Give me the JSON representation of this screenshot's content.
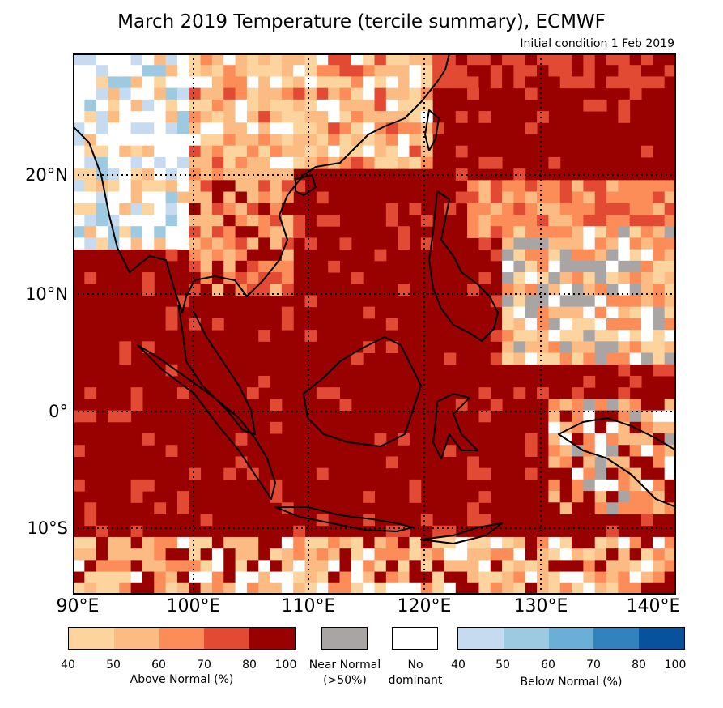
{
  "title": "March 2019 Temperature (tercile summary), ECMWF",
  "subtitle": "Initial condition 1 Feb 2019",
  "map": {
    "lat_labels": [
      "20°N",
      "10°N",
      "0°",
      "10°S"
    ],
    "lon_labels": [
      "90°E",
      "100°E",
      "110°E",
      "120°E",
      "130°E",
      "140°E"
    ],
    "region": "Southeast Asia / Maritime Continent"
  },
  "legend": {
    "above": {
      "caption": "Above Normal (%)",
      "ticks": [
        "40",
        "50",
        "60",
        "70",
        "80",
        "100"
      ],
      "colors": [
        "#fdd49e",
        "#fdbb84",
        "#fc8d59",
        "#e34a33",
        "#990000"
      ]
    },
    "near": {
      "caption_line1": "Near Normal",
      "caption_line2": "(>50%)",
      "color": "#aaa5a5"
    },
    "none": {
      "caption_line1": "No",
      "caption_line2": "dominant",
      "color": "#ffffff"
    },
    "below": {
      "caption": "Below Normal (%)",
      "ticks": [
        "40",
        "50",
        "60",
        "70",
        "80",
        "100"
      ],
      "colors": [
        "#c6dbef",
        "#9ecae1",
        "#6baed6",
        "#3182bd",
        "#08519c"
      ]
    }
  }
}
